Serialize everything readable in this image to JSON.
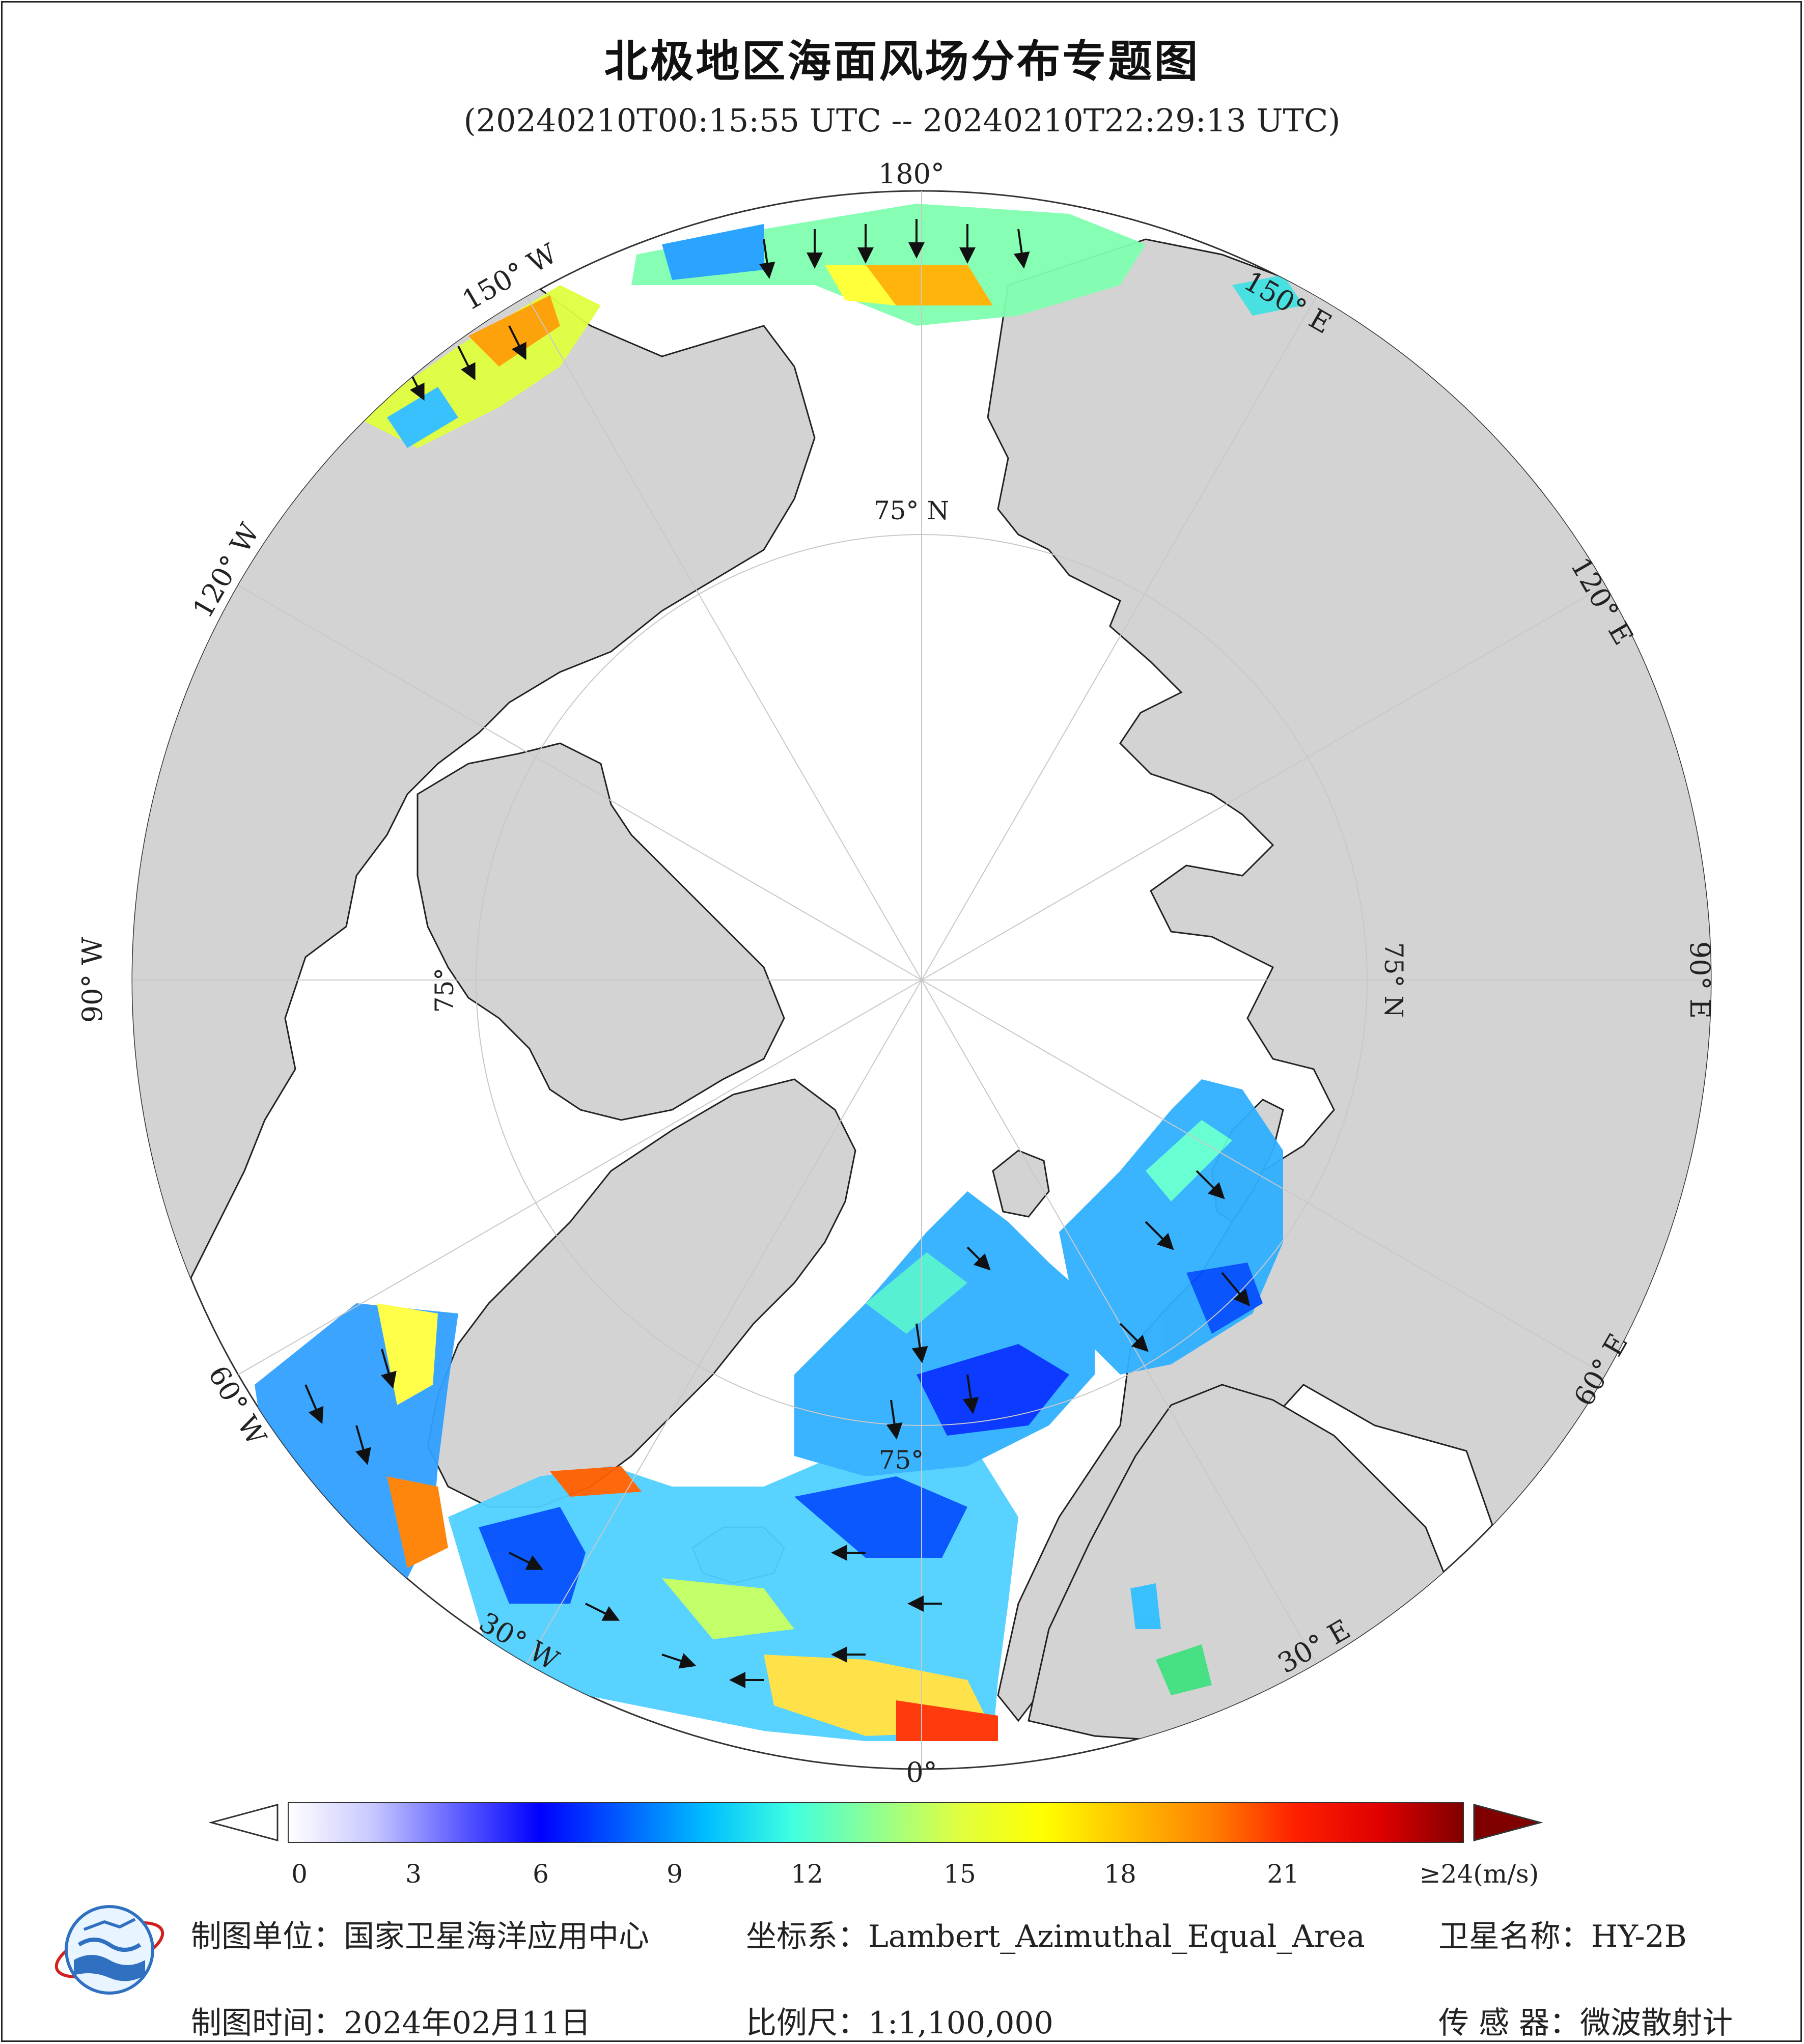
{
  "title": "北极地区海面风场分布专题图",
  "subtitle": "(20240210T00:15:55 UTC -- 20240210T22:29:13 UTC)",
  "lon_labels": [
    "180°",
    "150° E",
    "120° E",
    "90° E",
    "60° E",
    "30° E",
    "0°",
    "30° W",
    "60° W",
    "90° W",
    "120° W",
    "150° W"
  ],
  "lat_labels": [
    "75° N",
    "75° N",
    "75°",
    "75°"
  ],
  "colorbar": {
    "ticks": [
      "0",
      "3",
      "6",
      "9",
      "12",
      "15",
      "18",
      "21",
      "≥24(m/s)"
    ],
    "tick_values": [
      0,
      3,
      6,
      9,
      12,
      15,
      18,
      21,
      24
    ],
    "unit": "m/s",
    "colors": [
      "#ffffff",
      "#c8c8ff",
      "#6060ff",
      "#0000ff",
      "#0060ff",
      "#00c0ff",
      "#40ffe0",
      "#90ff90",
      "#e0ff40",
      "#ffff00",
      "#ffc000",
      "#ff8000",
      "#ff2000",
      "#e00000",
      "#800000"
    ]
  },
  "footer": {
    "org_label": "制图单位：",
    "org_value": "国家卫星海洋应用中心",
    "crs_label": "坐标系：",
    "crs_value": "Lambert_Azimuthal_Equal_Area",
    "sat_label": "卫星名称：",
    "sat_value": "HY-2B",
    "date_label": "制图时间：",
    "date_value": "2024年02月11日",
    "scale_label": "比例尺：",
    "scale_value": "1:1,100,000",
    "sensor_label": "传 感 器：",
    "sensor_value": "微波散射计"
  },
  "colors": {
    "land": "#d3d3d3",
    "ocean_ice": "#ffffff",
    "graticule": "#c8c8c8",
    "border": "#222222"
  },
  "icons": [
    "nsoas-logo-icon",
    "colorbar-min-arrow-icon",
    "colorbar-max-arrow-icon",
    "wind-arrow-icon"
  ]
}
